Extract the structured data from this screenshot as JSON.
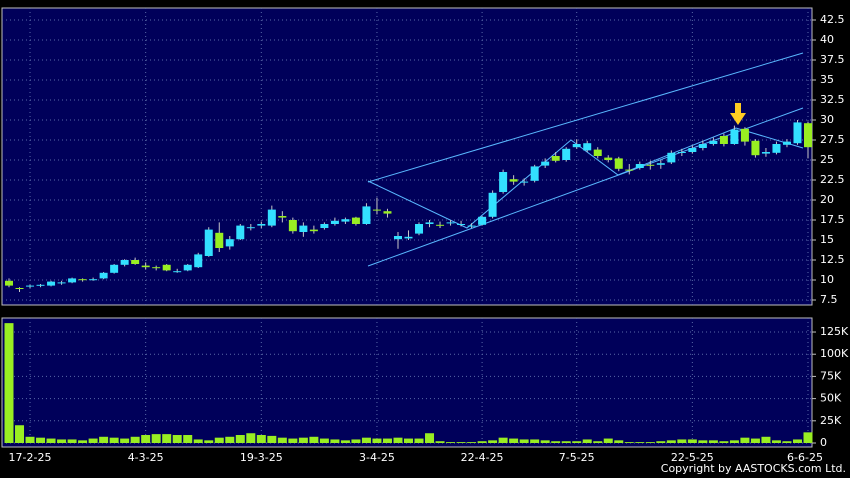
{
  "chart_data": [
    {
      "type": "candlestick",
      "open": [
        9.9,
        9.0,
        9.2,
        9.3,
        9.3,
        9.6,
        9.7,
        10.1,
        10.0,
        10.2,
        10.9,
        11.9,
        12.5,
        11.8,
        11.6,
        11.9,
        11.1,
        11.2,
        11.6,
        13.0,
        15.9,
        14.2,
        15.1,
        16.6,
        16.8,
        16.8,
        18.0,
        17.5,
        16.0,
        16.3,
        16.5,
        17.0,
        17.3,
        17.8,
        17.0,
        18.8,
        18.6,
        15.1,
        15.2,
        15.8,
        17.0,
        16.9,
        17.1,
        17.0,
        16.8,
        16.9,
        17.9,
        21.0,
        22.6,
        22.3,
        22.4,
        24.3,
        25.5,
        25.0,
        26.6,
        26.2,
        26.3,
        25.3,
        25.2,
        23.8,
        24.0,
        24.4,
        24.4,
        24.7,
        25.9,
        26.0,
        26.5,
        27.0,
        28.0,
        27.0,
        28.9,
        27.4,
        25.8,
        25.9,
        26.9,
        27.1,
        29.6
      ],
      "high": [
        10.2,
        9.1,
        9.4,
        9.5,
        9.9,
        9.9,
        10.3,
        10.2,
        10.3,
        11.0,
        12.0,
        12.6,
        12.8,
        12.2,
        11.8,
        12.0,
        11.4,
        12.0,
        13.4,
        16.6,
        17.2,
        15.5,
        17.0,
        17.0,
        17.3,
        19.3,
        18.6,
        17.8,
        17.2,
        16.8,
        17.2,
        17.8,
        17.8,
        17.9,
        19.6,
        20.3,
        18.9,
        16.0,
        16.2,
        17.2,
        17.5,
        17.3,
        17.5,
        17.4,
        17.1,
        18.0,
        21.2,
        23.8,
        23.1,
        22.7,
        24.4,
        25.2,
        26.0,
        26.6,
        27.6,
        27.4,
        26.6,
        25.6,
        25.4,
        24.5,
        24.8,
        24.9,
        25.0,
        26.2,
        26.4,
        26.8,
        27.4,
        27.8,
        28.3,
        29.3,
        29.1,
        27.6,
        26.5,
        27.3,
        27.6,
        30.0,
        29.8
      ],
      "low": [
        9.1,
        8.5,
        9.0,
        9.1,
        9.2,
        9.4,
        9.6,
        9.8,
        9.9,
        10.1,
        10.8,
        11.7,
        11.9,
        11.3,
        11.2,
        11.1,
        10.9,
        11.1,
        11.5,
        12.9,
        13.5,
        13.8,
        15.0,
        16.2,
        16.5,
        16.6,
        17.2,
        15.8,
        15.4,
        15.8,
        16.3,
        16.8,
        17.0,
        16.8,
        16.9,
        18.2,
        17.8,
        13.9,
        15.0,
        15.6,
        16.6,
        16.5,
        16.8,
        16.7,
        16.5,
        16.8,
        17.7,
        20.8,
        21.9,
        21.8,
        22.2,
        24.0,
        24.7,
        24.8,
        26.4,
        26.0,
        25.2,
        24.7,
        23.6,
        23.2,
        23.8,
        23.8,
        23.9,
        24.5,
        25.5,
        25.8,
        26.2,
        26.8,
        26.7,
        26.9,
        26.8,
        25.3,
        25.4,
        25.7,
        26.6,
        26.9,
        25.2
      ],
      "close": [
        9.3,
        8.9,
        9.3,
        9.4,
        9.8,
        9.7,
        10.2,
        10.0,
        10.1,
        10.9,
        11.9,
        12.5,
        12.0,
        11.6,
        11.5,
        11.2,
        11.1,
        11.9,
        13.2,
        16.3,
        14.0,
        15.1,
        16.8,
        16.6,
        17.0,
        18.8,
        17.8,
        16.1,
        16.8,
        16.1,
        17.0,
        17.4,
        17.6,
        17.0,
        19.2,
        18.7,
        18.3,
        15.5,
        15.4,
        17.0,
        17.2,
        16.8,
        17.2,
        17.0,
        16.8,
        17.9,
        20.9,
        23.5,
        22.3,
        22.3,
        24.2,
        24.8,
        24.9,
        26.4,
        27.0,
        27.1,
        25.5,
        25.0,
        23.9,
        23.7,
        24.5,
        24.3,
        24.6,
        25.9,
        26.0,
        26.5,
        27.0,
        27.4,
        27.0,
        28.8,
        27.3,
        25.6,
        26.0,
        27.0,
        27.3,
        29.7,
        26.6
      ],
      "up_color": "#33e0ff",
      "down_color": "#99ee22",
      "ylim": [
        6.875,
        44
      ],
      "yticks": [
        7.5,
        10,
        12.5,
        15,
        17.5,
        20,
        22.5,
        25,
        27.5,
        30,
        32.5,
        35,
        37.5,
        40,
        42.5
      ],
      "grid": true
    },
    {
      "type": "bar",
      "categories": [
        null,
        null,
        "17-2-25",
        null,
        null,
        null,
        null,
        null,
        null,
        null,
        null,
        null,
        null,
        "4-3-25",
        null,
        null,
        null,
        null,
        null,
        null,
        null,
        null,
        null,
        null,
        "19-3-25",
        null,
        null,
        null,
        null,
        null,
        null,
        null,
        null,
        null,
        null,
        "3-4-25",
        null,
        null,
        null,
        null,
        null,
        null,
        null,
        null,
        null,
        "22-4-25",
        null,
        null,
        null,
        null,
        null,
        null,
        null,
        null,
        "7-5-25",
        null,
        null,
        null,
        null,
        null,
        null,
        null,
        null,
        null,
        null,
        "22-5-25",
        null,
        null,
        null,
        null,
        null,
        null,
        null,
        null,
        null,
        null,
        "6-6-25"
      ],
      "values": [
        135000,
        20000,
        7000,
        6000,
        5000,
        4000,
        4000,
        3000,
        5000,
        7000,
        6000,
        5000,
        7000,
        9000,
        10000,
        10000,
        9000,
        9000,
        4000,
        3000,
        6000,
        7000,
        9000,
        11000,
        9000,
        8000,
        6000,
        5000,
        6000,
        7000,
        5000,
        4000,
        3000,
        4000,
        6000,
        5000,
        5000,
        6000,
        5000,
        5000,
        11000,
        2000,
        1000,
        1000,
        1000,
        2000,
        3000,
        6000,
        5000,
        4000,
        4000,
        3000,
        2000,
        2000,
        2000,
        4000,
        2000,
        5000,
        3000,
        1000,
        1000,
        1000,
        2000,
        3000,
        4000,
        4000,
        3000,
        3000,
        2000,
        3000,
        6000,
        5000,
        7000,
        3000,
        2000,
        4000,
        12000
      ],
      "color": "#99ee22",
      "ylim": [
        0,
        140000
      ],
      "yticks": [
        0,
        {
          "value": 25000,
          "label": "25K"
        },
        {
          "value": 50000,
          "label": "50K"
        },
        {
          "value": 75000,
          "label": "75K"
        },
        {
          "value": 100000,
          "label": "100K"
        },
        {
          "value": 125000,
          "label": "125K"
        }
      ],
      "grid": true
    }
  ],
  "credit": "Copyright by AASTOCKS.com Ltd."
}
